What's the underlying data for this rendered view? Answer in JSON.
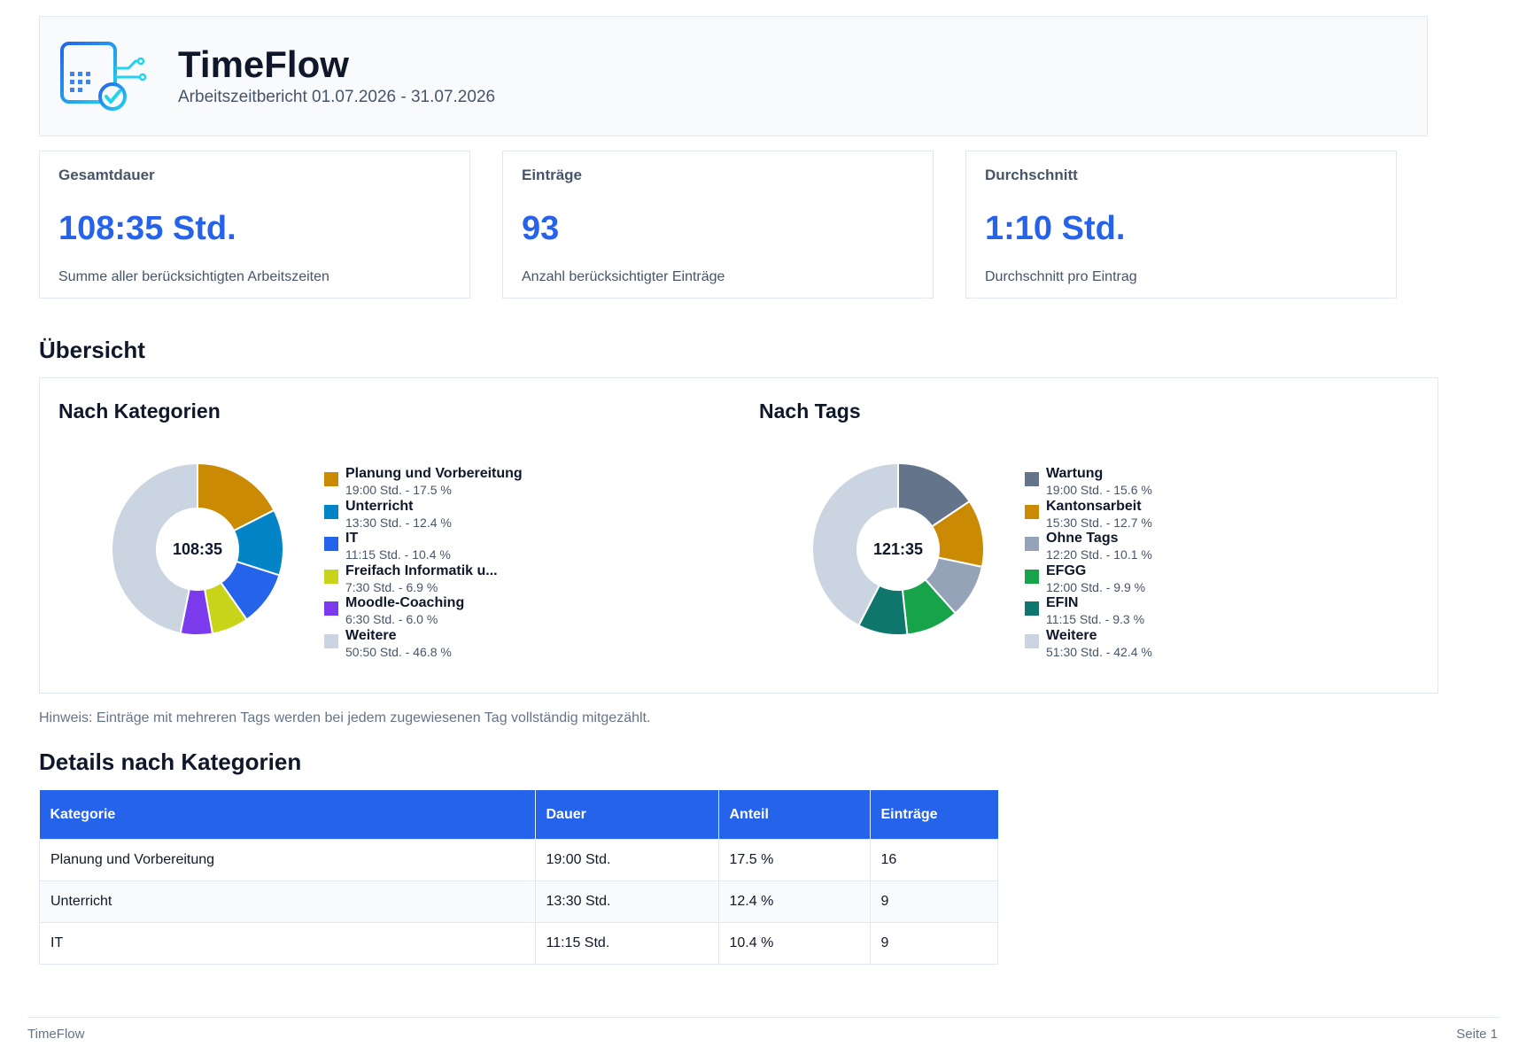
{
  "header": {
    "title": "TimeFlow",
    "subtitle": "Arbeitszeitbericht 01.07.2026 - 31.07.2026"
  },
  "stats": [
    {
      "title": "Gesamtdauer",
      "value": "108:35 Std.",
      "description": "Summe aller berücksichtigten Arbeitszeiten"
    },
    {
      "title": "Einträge",
      "value": "93",
      "description": "Anzahl berücksichtigter Einträge"
    },
    {
      "title": "Durchschnitt",
      "value": "1:10 Std.",
      "description": "Durchschnitt pro Eintrag"
    }
  ],
  "overview": {
    "heading": "Übersicht",
    "note": "Hinweis: Einträge mit mehreren Tags werden bei jedem zugewiesenen Tag vollständig mitgezählt."
  },
  "chart_data": [
    {
      "type": "pie",
      "title": "Nach Kategorien",
      "center_label": "108:35",
      "slices": [
        {
          "name": "Planung und Vorbereitung",
          "detail": "19:00 Std. - 17.5 %",
          "value": 17.5,
          "color": "#ca8a04"
        },
        {
          "name": "Unterricht",
          "detail": "13:30 Std. - 12.4 %",
          "value": 12.4,
          "color": "#0284c7"
        },
        {
          "name": "IT",
          "detail": "11:15 Std. - 10.4 %",
          "value": 10.4,
          "color": "#2563eb"
        },
        {
          "name": "Freifach Informatik u...",
          "detail": "7:30 Std. - 6.9 %",
          "value": 6.9,
          "color": "#c8d41a"
        },
        {
          "name": "Moodle-Coaching",
          "detail": "6:30 Std. - 6.0 %",
          "value": 6.0,
          "color": "#7c3aed"
        },
        {
          "name": "Weitere",
          "detail": "50:50 Std. - 46.8 %",
          "value": 46.8,
          "color": "#cbd5e1"
        }
      ]
    },
    {
      "type": "pie",
      "title": "Nach Tags",
      "center_label": "121:35",
      "slices": [
        {
          "name": "Wartung",
          "detail": "19:00 Std. - 15.6 %",
          "value": 15.6,
          "color": "#64748b"
        },
        {
          "name": "Kantonsarbeit",
          "detail": "15:30 Std. - 12.7 %",
          "value": 12.7,
          "color": "#ca8a04"
        },
        {
          "name": "Ohne Tags",
          "detail": "12:20 Std. - 10.1 %",
          "value": 10.1,
          "color": "#94a3b8"
        },
        {
          "name": "EFGG",
          "detail": "12:00 Std. - 9.9 %",
          "value": 9.9,
          "color": "#16a34a"
        },
        {
          "name": "EFIN",
          "detail": "11:15 Std. - 9.3 %",
          "value": 9.3,
          "color": "#0f766e"
        },
        {
          "name": "Weitere",
          "detail": "51:30 Std. - 42.4 %",
          "value": 42.4,
          "color": "#cbd5e1"
        }
      ]
    }
  ],
  "details": {
    "heading": "Details nach Kategorien",
    "columns": [
      "Kategorie",
      "Dauer",
      "Anteil",
      "Einträge"
    ],
    "rows": [
      [
        "Planung und Vorbereitung",
        "19:00 Std.",
        "17.5 %",
        "16"
      ],
      [
        "Unterricht",
        "13:30 Std.",
        "12.4 %",
        "9"
      ],
      [
        "IT",
        "11:15 Std.",
        "10.4 %",
        "9"
      ]
    ]
  },
  "footer": {
    "left": "TimeFlow",
    "right": "Seite 1"
  },
  "colors": {
    "accent": "#2563eb"
  }
}
